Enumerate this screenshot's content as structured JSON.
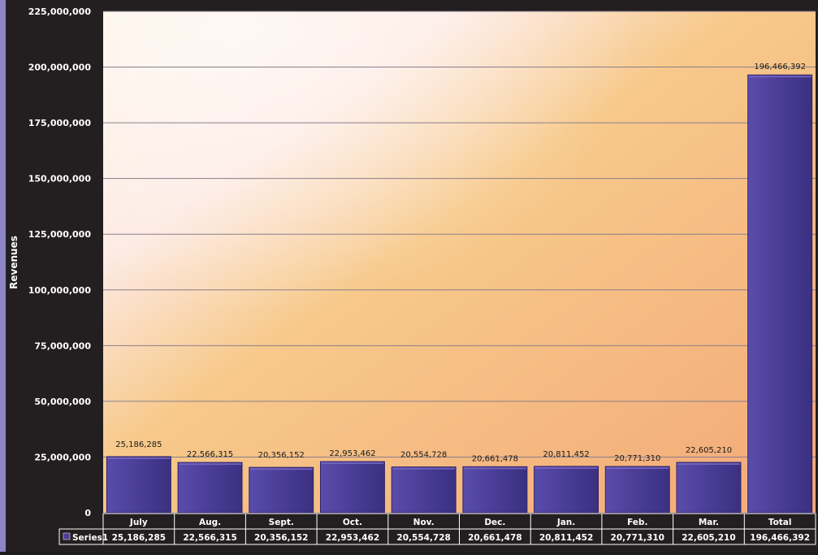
{
  "chart_data": {
    "type": "bar",
    "ylabel": "Revenues",
    "ylim": [
      0,
      225000000
    ],
    "y_ticks": [
      "0",
      "25,000,000",
      "50,000,000",
      "75,000,000",
      "100,000,000",
      "125,000,000",
      "150,000,000",
      "175,000,000",
      "200,000,000",
      "225,000,000"
    ],
    "y_tick_values": [
      0,
      25000000,
      50000000,
      75000000,
      100000000,
      125000000,
      150000000,
      175000000,
      200000000,
      225000000
    ],
    "categories": [
      "July",
      "Aug.",
      "Sept.",
      "Oct.",
      "Nov.",
      "Dec.",
      "Jan.",
      "Feb.",
      "Mar.",
      "Total"
    ],
    "series": [
      {
        "name": "Series1",
        "values": [
          25186285,
          22566315,
          20356152,
          22953462,
          20554728,
          20661478,
          20811452,
          20771310,
          22605210,
          196466392
        ],
        "labels": [
          "25,186,285",
          "22,566,315",
          "20,356,152",
          "22,953,462",
          "20,554,728",
          "20,661,478",
          "20,811,452",
          "20,771,310",
          "22,605,210",
          "196,466,392"
        ],
        "color": "#4a3d96"
      }
    ],
    "grid": true,
    "legend": "data-table",
    "colors": {
      "background": "#231f20",
      "plot_gradient_start": "#fdf3e6",
      "plot_gradient_end": "#f3a878",
      "bar": "#4a3d96",
      "bar_edge": "#2f2566",
      "gridline": "#8a7e8c",
      "text_light": "#ffffff",
      "text_dark": "#1a1a1a"
    }
  }
}
